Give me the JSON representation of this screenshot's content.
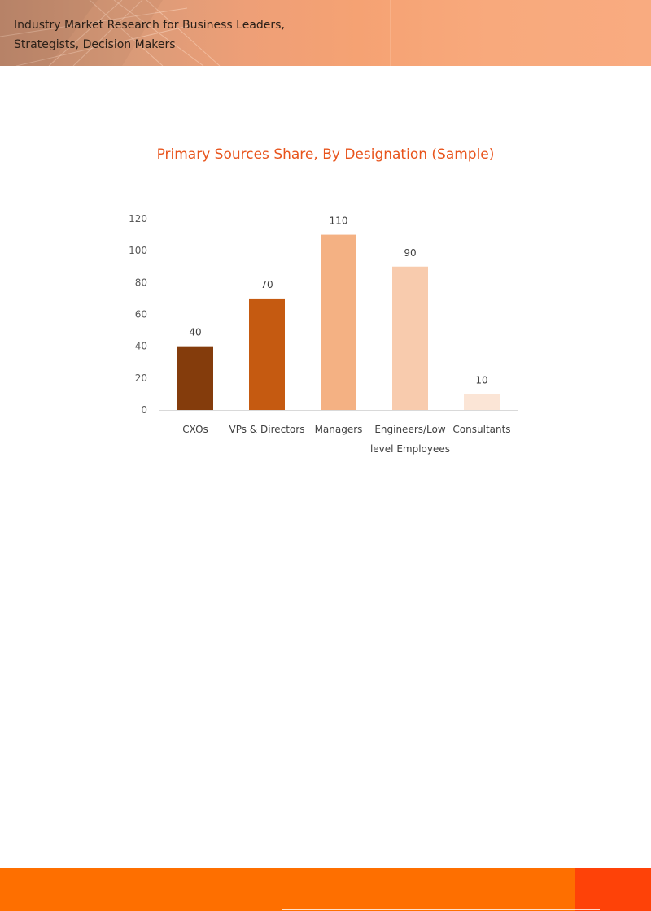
{
  "header": {
    "line1": "Industry Market Research for Business Leaders,",
    "line2": "Strategists, Decision Makers"
  },
  "chart_data": {
    "type": "bar",
    "title": "Primary Sources Share, By Designation (Sample)",
    "categories": [
      "CXOs",
      "VPs & Directors",
      "Managers",
      "Engineers/Low level Employees",
      "Consultants"
    ],
    "category_label_lines": [
      [
        "CXOs"
      ],
      [
        "VPs & Directors"
      ],
      [
        "Managers"
      ],
      [
        "Engineers/Low",
        "level Employees"
      ],
      [
        "Consultants"
      ]
    ],
    "values": [
      40,
      70,
      110,
      90,
      10
    ],
    "bar_colors": [
      "#843c0c",
      "#c55a11",
      "#f4b183",
      "#f8cbad",
      "#fbe5d6"
    ],
    "ylim": [
      0,
      120
    ],
    "yticks": [
      0,
      20,
      40,
      60,
      80,
      100,
      120
    ],
    "xlabel": "",
    "ylabel": "",
    "grid": false,
    "data_labels": true
  },
  "colors": {
    "title": "#e8541c",
    "footer": "#fe6f00",
    "footer_accent": "#fe4208"
  }
}
